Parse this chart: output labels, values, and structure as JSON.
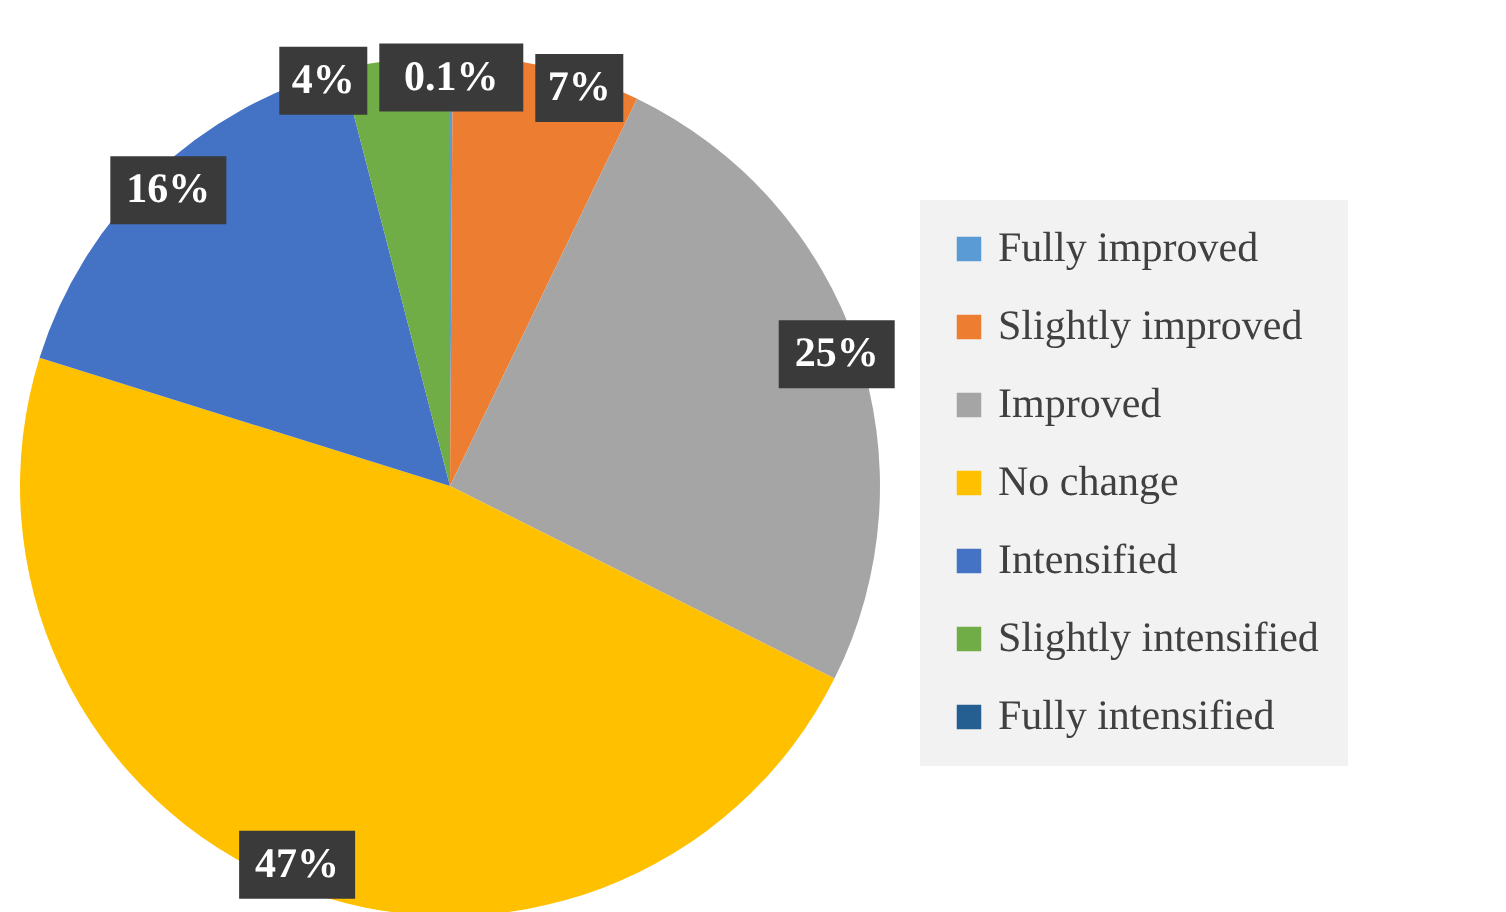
{
  "chart_data": {
    "type": "pie",
    "categories": [
      "Fully improved",
      "Slightly improved",
      "Improved",
      "No change",
      "Intensified",
      "Slightly intensified",
      "Fully intensified"
    ],
    "values": [
      0.1,
      7,
      25,
      47,
      16,
      4,
      0
    ],
    "value_labels": [
      "0.1%",
      "7%",
      "25%",
      "47%",
      "16%",
      "4%",
      null
    ],
    "colors": [
      "#5b9bd5",
      "#ed7d31",
      "#a5a5a5",
      "#ffc000",
      "#4472c4",
      "#70ad47",
      "#255e91"
    ],
    "legend": "right"
  }
}
